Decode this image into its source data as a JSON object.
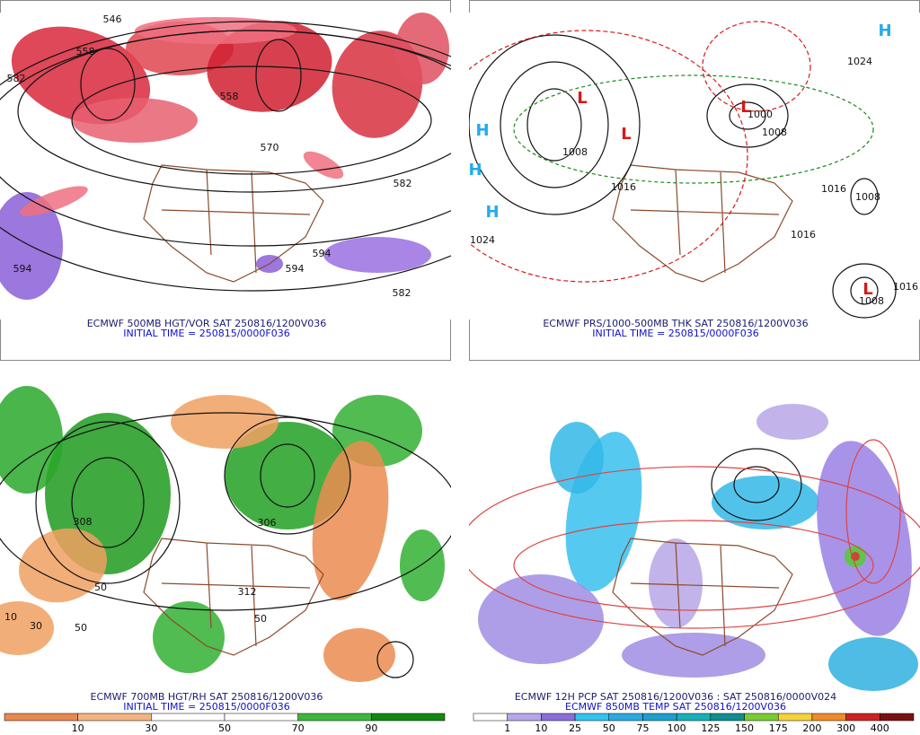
{
  "panels": [
    {
      "caption": [
        "ECMWF 500MB HGT/VOR SAT 250816/1200V036",
        "INITIAL TIME = 250815/0000F036"
      ],
      "map_labels": [
        "546",
        "558",
        "582",
        "558",
        "570",
        "582",
        "594",
        "594",
        "594",
        "582"
      ]
    },
    {
      "caption": [
        "ECMWF PRS/1000-500MB THK SAT 250816/1200V036",
        "INITIAL TIME = 250815/0000F036"
      ],
      "map_labels": [
        "1008",
        "1016",
        "1024",
        "1000",
        "1008",
        "1016",
        "1008",
        "1016",
        "1024",
        "1008",
        "1016",
        "L",
        "L",
        "L",
        "L",
        "H",
        "H",
        "H",
        "H"
      ]
    },
    {
      "caption": [
        "ECMWF 700MB HGT/RH SAT 250816/1200V036",
        "INITIAL TIME = 250815/0000F036"
      ],
      "map_labels": [
        "50",
        "10",
        "50",
        "30",
        "308",
        "306",
        "312",
        "50"
      ],
      "colorbar": {
        "labels": [
          10,
          30,
          50,
          70,
          90
        ],
        "colors": [
          "#e8884f",
          "#f4b482",
          "#ffffff",
          "#ffffff",
          "#3cb83c",
          "#118811"
        ]
      }
    },
    {
      "caption": [
        "ECMWF 12H PCP SAT 250816/1200V036 : SAT 250816/0000V024",
        "ECMWF 850MB TEMP SAT 250816/1200V036"
      ],
      "colorbar": {
        "labels": [
          1,
          10,
          25,
          50,
          75,
          100,
          125,
          150,
          175,
          200,
          300,
          400
        ],
        "colors": [
          "#ffffff",
          "#b9a6e8",
          "#8a6fdc",
          "#33c4f0",
          "#2aa9e0",
          "#1f9fd0",
          "#17b0b8",
          "#0e8f8f",
          "#77cc33",
          "#f2d33a",
          "#f08a2a",
          "#cc2222",
          "#7a1010"
        ]
      }
    }
  ]
}
